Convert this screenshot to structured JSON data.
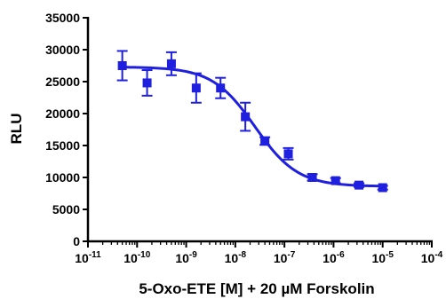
{
  "chart_data": {
    "type": "scatter",
    "title": "",
    "xlabel": "5-Oxo-ETE [M] + 20 µM Forskolin",
    "ylabel": "RLU",
    "xscale": "log",
    "xlim": [
      1e-11,
      0.0001
    ],
    "ylim": [
      0,
      35000
    ],
    "y_ticks": [
      0,
      5000,
      10000,
      15000,
      20000,
      25000,
      30000,
      35000
    ],
    "x_tick_exponents": [
      -11,
      -10,
      -9,
      -8,
      -7,
      -6,
      -5,
      -4
    ],
    "x_tick_base": "10",
    "grid": false,
    "legend": "none",
    "color": "#1f1fe0",
    "series": [
      {
        "name": "",
        "marker": "square",
        "x": [
          5e-11,
          1.6e-10,
          5e-10,
          1.6e-09,
          5e-09,
          1.6e-08,
          4e-08,
          1.2e-07,
          3.7e-07,
          1.1e-06,
          3.3e-06,
          1e-05
        ],
        "y": [
          27500,
          24800,
          27800,
          24000,
          24000,
          19500,
          15700,
          13700,
          10000,
          9500,
          8800,
          8400
        ],
        "error": [
          2300,
          2000,
          1800,
          2300,
          1600,
          2200,
          600,
          900,
          500,
          400,
          300,
          300
        ]
      }
    ],
    "fit": {
      "type": "sigmoidal dose-response",
      "top": 27300,
      "bottom": 8600,
      "log_ec50": -7.6,
      "x_range": [
        5e-11,
        1e-05
      ]
    }
  }
}
